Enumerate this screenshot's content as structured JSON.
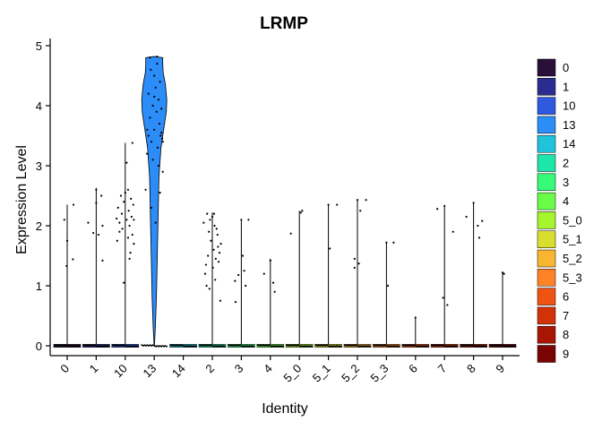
{
  "chart_data": {
    "type": "violin",
    "title": "LRMP",
    "xlabel": "Identity",
    "ylabel": "Expression Level",
    "ylim": [
      0,
      5
    ],
    "yticks": [
      0,
      1,
      2,
      3,
      4,
      5
    ],
    "categories": [
      "0",
      "1",
      "10",
      "13",
      "14",
      "2",
      "3",
      "4",
      "5_0",
      "5_1",
      "5_2",
      "5_3",
      "6",
      "7",
      "8",
      "9"
    ],
    "colors": [
      "#2a0f38",
      "#2b2c8f",
      "#2f5ae0",
      "#2c8cf8",
      "#1fc4dc",
      "#1ee6a8",
      "#36fb76",
      "#69fd48",
      "#a6f42e",
      "#d9dd2e",
      "#f7b632",
      "#fd8326",
      "#ef5312",
      "#d23208",
      "#a81603",
      "#790402"
    ],
    "violin_max": [
      2.35,
      2.63,
      3.38,
      4.82,
      0.0,
      2.22,
      2.1,
      1.45,
      2.25,
      2.35,
      2.43,
      1.73,
      0.47,
      2.33,
      2.4,
      1.22
    ],
    "points": [
      [
        [
          0.0,
          1.75
        ],
        [
          -0.1,
          2.1
        ],
        [
          -0.02,
          1.33
        ],
        [
          0.2,
          1.44
        ],
        [
          0.22,
          2.35
        ]
      ],
      [
        [
          0.0,
          2.6
        ],
        [
          -0.28,
          2.05
        ],
        [
          -0.1,
          1.88
        ],
        [
          0.08,
          1.85
        ],
        [
          0.22,
          1.42
        ],
        [
          0.0,
          2.38
        ],
        [
          0.18,
          2.5
        ],
        [
          0.22,
          2.0
        ]
      ],
      [
        [
          -0.3,
          2.12
        ],
        [
          -0.25,
          2.3
        ],
        [
          -0.2,
          2.05
        ],
        [
          -0.15,
          2.5
        ],
        [
          -0.12,
          2.2
        ],
        [
          -0.1,
          1.95
        ],
        [
          -0.05,
          2.4
        ],
        [
          0.0,
          2.55
        ],
        [
          0.05,
          2.1
        ],
        [
          0.1,
          1.8
        ],
        [
          0.12,
          2.25
        ],
        [
          0.15,
          2.0
        ],
        [
          0.18,
          1.55
        ],
        [
          0.2,
          2.45
        ],
        [
          0.22,
          2.15
        ],
        [
          0.25,
          1.85
        ],
        [
          0.28,
          2.35
        ],
        [
          0.3,
          1.7
        ],
        [
          0.05,
          3.05
        ],
        [
          0.25,
          3.38
        ],
        [
          -0.05,
          1.05
        ],
        [
          0.15,
          1.45
        ],
        [
          -0.2,
          1.9
        ],
        [
          0.1,
          2.6
        ],
        [
          -0.28,
          1.75
        ],
        [
          0.3,
          2.1
        ]
      ],
      [
        [
          -0.3,
          2.6
        ],
        [
          -0.25,
          3.2
        ],
        [
          -0.2,
          3.5
        ],
        [
          -0.2,
          4.2
        ],
        [
          -0.15,
          3.8
        ],
        [
          -0.12,
          4.6
        ],
        [
          -0.1,
          3.4
        ],
        [
          -0.05,
          4.0
        ],
        [
          0.0,
          4.5
        ],
        [
          0.0,
          3.6
        ],
        [
          0.05,
          4.3
        ],
        [
          0.08,
          3.9
        ],
        [
          0.1,
          4.7
        ],
        [
          0.12,
          3.3
        ],
        [
          0.15,
          4.1
        ],
        [
          0.18,
          3.7
        ],
        [
          0.2,
          4.4
        ],
        [
          0.22,
          3.5
        ],
        [
          0.25,
          3.95
        ],
        [
          0.28,
          3.45
        ],
        [
          0.3,
          2.9
        ],
        [
          -0.1,
          2.3
        ],
        [
          0.05,
          2.05
        ],
        [
          0.2,
          2.55
        ],
        [
          -0.15,
          4.8
        ],
        [
          0.1,
          4.82
        ],
        [
          0.0,
          4.15
        ],
        [
          -0.05,
          3.1
        ],
        [
          0.15,
          3.0
        ],
        [
          0.25,
          3.55
        ],
        [
          -0.25,
          3.6
        ],
        [
          0.3,
          3.4
        ]
      ],
      [],
      [
        [
          -0.3,
          2.05
        ],
        [
          -0.25,
          1.2
        ],
        [
          -0.2,
          1.0
        ],
        [
          -0.18,
          2.2
        ],
        [
          -0.15,
          1.5
        ],
        [
          -0.12,
          1.9
        ],
        [
          -0.1,
          0.95
        ],
        [
          -0.05,
          1.75
        ],
        [
          0.0,
          2.15
        ],
        [
          0.02,
          1.3
        ],
        [
          0.05,
          1.6
        ],
        [
          0.08,
          2.0
        ],
        [
          0.1,
          1.1
        ],
        [
          0.12,
          1.45
        ],
        [
          0.15,
          1.95
        ],
        [
          0.18,
          1.85
        ],
        [
          0.2,
          1.65
        ],
        [
          0.22,
          1.4
        ],
        [
          0.25,
          1.55
        ],
        [
          0.28,
          0.75
        ],
        [
          0.3,
          1.7
        ],
        [
          -0.08,
          2.1
        ],
        [
          0.06,
          2.2
        ],
        [
          -0.22,
          1.35
        ]
      ],
      [
        [
          -0.22,
          1.08
        ],
        [
          -0.2,
          0.73
        ],
        [
          -0.1,
          1.18
        ],
        [
          0.0,
          2.1
        ],
        [
          0.05,
          1.5
        ],
        [
          0.25,
          2.1
        ],
        [
          0.1,
          1.25
        ],
        [
          0.15,
          1.0
        ]
      ],
      [
        [
          0.0,
          1.42
        ],
        [
          -0.22,
          1.2
        ],
        [
          0.1,
          1.05
        ],
        [
          0.15,
          0.9
        ]
      ],
      [
        [
          -0.3,
          1.87
        ],
        [
          0.05,
          2.22
        ],
        [
          0.1,
          2.25
        ]
      ],
      [
        [
          0.0,
          2.35
        ],
        [
          0.05,
          1.62
        ],
        [
          0.3,
          2.35
        ]
      ],
      [
        [
          -0.1,
          1.45
        ],
        [
          -0.1,
          1.3
        ],
        [
          0.0,
          2.43
        ],
        [
          0.05,
          1.37
        ],
        [
          0.1,
          2.25
        ],
        [
          0.3,
          2.43
        ]
      ],
      [
        [
          0.0,
          1.72
        ],
        [
          0.05,
          1.0
        ],
        [
          0.25,
          1.72
        ]
      ],
      [
        [
          0.0,
          0.47
        ]
      ],
      [
        [
          -0.25,
          2.28
        ],
        [
          -0.05,
          0.8
        ],
        [
          0.0,
          2.33
        ],
        [
          0.1,
          0.68
        ],
        [
          0.3,
          1.9
        ]
      ],
      [
        [
          -0.25,
          2.15
        ],
        [
          0.0,
          2.38
        ],
        [
          0.15,
          2.0
        ],
        [
          0.2,
          1.8
        ],
        [
          0.3,
          2.08
        ]
      ],
      [
        [
          0.0,
          1.22
        ],
        [
          0.05,
          1.2
        ]
      ]
    ],
    "legend": {
      "position": "right",
      "entries": [
        "0",
        "1",
        "10",
        "13",
        "14",
        "2",
        "3",
        "4",
        "5_0",
        "5_1",
        "5_2",
        "5_3",
        "6",
        "7",
        "8",
        "9"
      ]
    },
    "grid": false
  }
}
